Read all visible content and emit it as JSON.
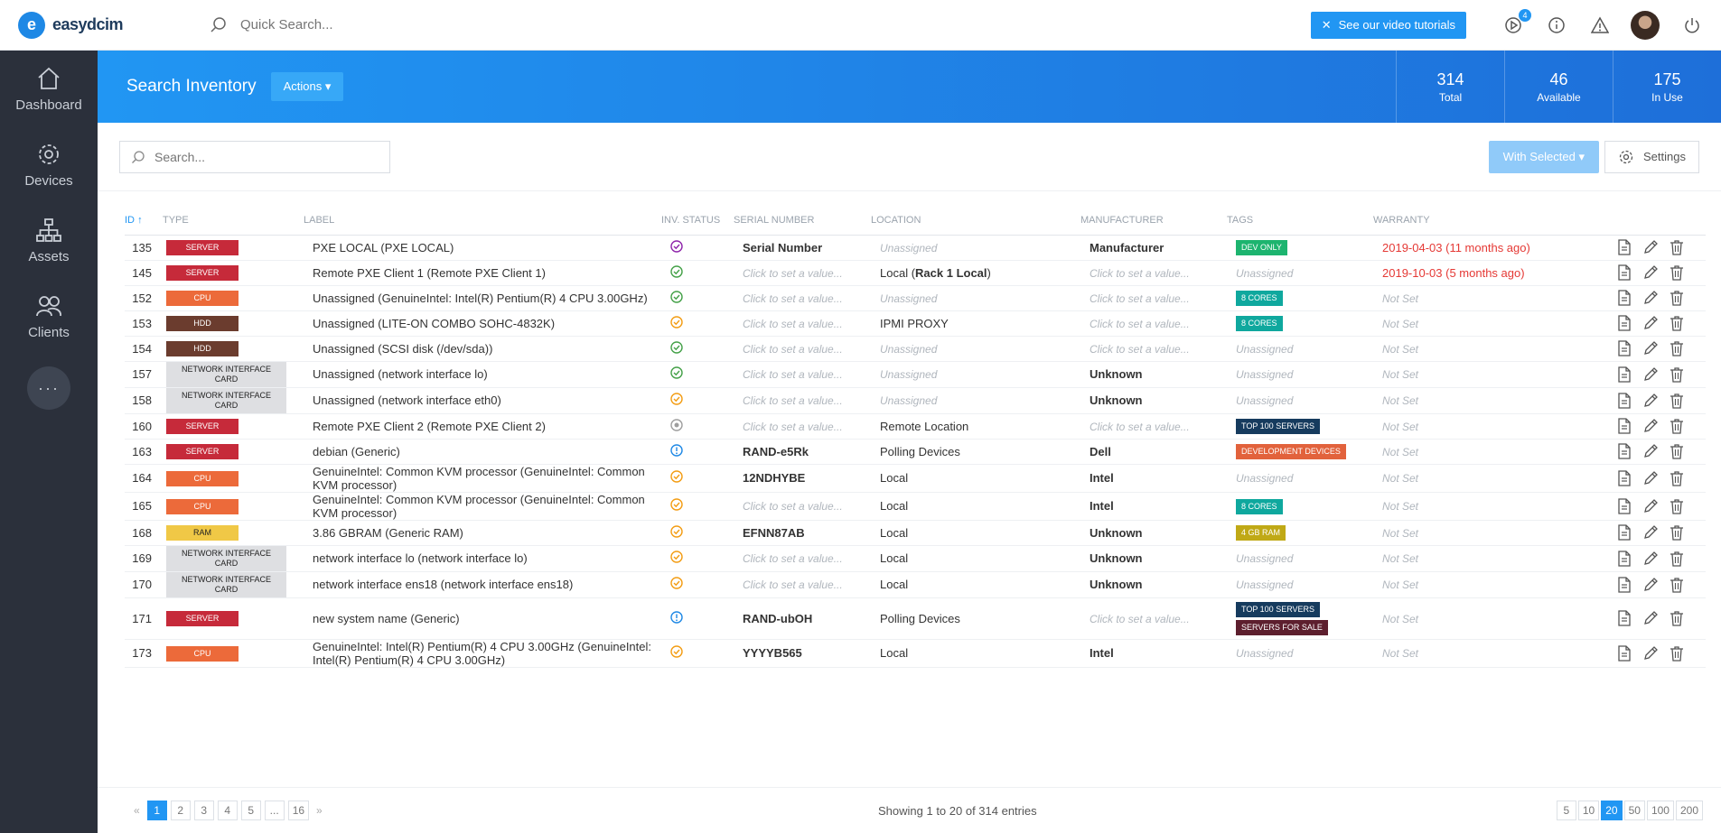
{
  "app": {
    "logo_letter": "e",
    "logo_text": "easydcim",
    "search_placeholder": "Quick Search...",
    "tutorial_label": "See our video tutorials",
    "notification_count": "4"
  },
  "sidebar": {
    "items": [
      {
        "label": "Dashboard"
      },
      {
        "label": "Devices"
      },
      {
        "label": "Assets"
      },
      {
        "label": "Clients"
      }
    ],
    "more": "···"
  },
  "header": {
    "title": "Search Inventory",
    "actions_label": "Actions",
    "stats": [
      {
        "num": "314",
        "cap": "Total"
      },
      {
        "num": "46",
        "cap": "Available"
      },
      {
        "num": "175",
        "cap": "In Use"
      }
    ]
  },
  "toolbar": {
    "search_placeholder": "Search...",
    "with_selected": "With Selected",
    "settings": "Settings"
  },
  "table": {
    "headers": {
      "id": "ID",
      "type": "TYPE",
      "label": "LABEL",
      "status": "INV. STATUS",
      "serial": "SERIAL NUMBER",
      "location": "LOCATION",
      "manufacturer": "MANUFACTURER",
      "tags": "TAGS",
      "warranty": "WARRANTY"
    },
    "rows": [
      {
        "id": "135",
        "type": "SERVER",
        "label": "PXE LOCAL (PXE LOCAL)",
        "status": "purple",
        "serial": "Serial Number",
        "serial_set": true,
        "location": "Unassigned",
        "location_set": false,
        "manufacturer": "Manufacturer",
        "man_set": true,
        "tags": [
          {
            "t": "DEV ONLY",
            "c": "#1db46f"
          }
        ],
        "warranty": "2019-04-03",
        "warranty_rel": "(11 months ago)",
        "warranty_kind": "red"
      },
      {
        "id": "145",
        "type": "SERVER",
        "label": "Remote PXE Client 1 (Remote PXE Client 1)",
        "status": "green",
        "serial": "Click to set a value...",
        "serial_set": false,
        "location": "Local (Rack 1 Local)",
        "location_set": true,
        "manufacturer": "Click to set a value...",
        "man_set": false,
        "tags": [],
        "tags_empty": "Unassigned",
        "warranty": "2019-10-03",
        "warranty_rel": "(5 months ago)",
        "warranty_kind": "red"
      },
      {
        "id": "152",
        "type": "CPU",
        "label": "Unassigned (GenuineIntel: Intel(R) Pentium(R) 4 CPU 3.00GHz)",
        "status": "green",
        "serial": "Click to set a value...",
        "serial_set": false,
        "location": "Unassigned",
        "location_set": false,
        "manufacturer": "Click to set a value...",
        "man_set": false,
        "tags": [
          {
            "t": "8 CORES",
            "c": "#0fa89e"
          }
        ],
        "warranty": "Not Set",
        "warranty_kind": "muted"
      },
      {
        "id": "153",
        "type": "HDD",
        "label": "Unassigned (LITE-ON COMBO SOHC-4832K)",
        "status": "orange",
        "serial": "Click to set a value...",
        "serial_set": false,
        "location": "IPMI PROXY",
        "location_set": true,
        "manufacturer": "Click to set a value...",
        "man_set": false,
        "tags": [
          {
            "t": "8 CORES",
            "c": "#0fa89e"
          }
        ],
        "warranty": "Not Set",
        "warranty_kind": "muted"
      },
      {
        "id": "154",
        "type": "HDD",
        "label": "Unassigned (SCSI disk (/dev/sda))",
        "status": "green",
        "serial": "Click to set a value...",
        "serial_set": false,
        "location": "Unassigned",
        "location_set": false,
        "manufacturer": "Click to set a value...",
        "man_set": false,
        "tags": [],
        "tags_empty": "Unassigned",
        "warranty": "Not Set",
        "warranty_kind": "muted"
      },
      {
        "id": "157",
        "type": "NETWORK INTERFACE CARD",
        "label": "Unassigned (network interface lo)",
        "status": "green",
        "serial": "Click to set a value...",
        "serial_set": false,
        "location": "Unassigned",
        "location_set": false,
        "manufacturer": "Unknown",
        "man_set": true,
        "tags": [],
        "tags_empty": "Unassigned",
        "warranty": "Not Set",
        "warranty_kind": "muted"
      },
      {
        "id": "158",
        "type": "NETWORK INTERFACE CARD",
        "label": "Unassigned (network interface eth0)",
        "status": "orange",
        "serial": "Click to set a value...",
        "serial_set": false,
        "location": "Unassigned",
        "location_set": false,
        "manufacturer": "Unknown",
        "man_set": true,
        "tags": [],
        "tags_empty": "Unassigned",
        "warranty": "Not Set",
        "warranty_kind": "muted"
      },
      {
        "id": "160",
        "type": "SERVER",
        "label": "Remote PXE Client 2 (Remote PXE Client 2)",
        "status": "grey",
        "serial": "Click to set a value...",
        "serial_set": false,
        "location": "Remote Location",
        "location_set": true,
        "manufacturer": "Click to set a value...",
        "man_set": false,
        "tags": [
          {
            "t": "TOP 100 SERVERS",
            "c": "#163b5e"
          }
        ],
        "warranty": "Not Set",
        "warranty_kind": "muted"
      },
      {
        "id": "163",
        "type": "SERVER",
        "label": "debian (Generic)",
        "status": "blue",
        "serial": "RAND-e5Rk",
        "serial_set": true,
        "location": "Polling Devices",
        "location_set": true,
        "manufacturer": "Dell",
        "man_set": true,
        "tags": [
          {
            "t": "DEVELOPMENT DEVICES",
            "c": "#e2623c"
          }
        ],
        "warranty": "Not Set",
        "warranty_kind": "muted"
      },
      {
        "id": "164",
        "type": "CPU",
        "label": "GenuineIntel: Common KVM processor (GenuineIntel: Common KVM processor)",
        "status": "orange",
        "serial": "12NDHYBE",
        "serial_set": true,
        "location": "Local",
        "location_set": true,
        "manufacturer": "Intel",
        "man_set": true,
        "tags": [],
        "tags_empty": "Unassigned",
        "warranty": "Not Set",
        "warranty_kind": "muted"
      },
      {
        "id": "165",
        "type": "CPU",
        "label": "GenuineIntel: Common KVM processor (GenuineIntel: Common KVM processor)",
        "status": "orange",
        "serial": "Click to set a value...",
        "serial_set": false,
        "location": "Local",
        "location_set": true,
        "manufacturer": "Intel",
        "man_set": true,
        "tags": [
          {
            "t": "8 CORES",
            "c": "#0fa89e"
          }
        ],
        "warranty": "Not Set",
        "warranty_kind": "muted"
      },
      {
        "id": "168",
        "type": "RAM",
        "label": "3.86 GBRAM (Generic RAM)",
        "status": "orange",
        "serial": "EFNN87AB",
        "serial_set": true,
        "location": "Local",
        "location_set": true,
        "manufacturer": "Unknown",
        "man_set": true,
        "tags": [
          {
            "t": "4 GB RAM",
            "c": "#c0a916"
          }
        ],
        "warranty": "Not Set",
        "warranty_kind": "muted"
      },
      {
        "id": "169",
        "type": "NETWORK INTERFACE CARD",
        "label": "network interface lo (network interface lo)",
        "status": "orange",
        "serial": "Click to set a value...",
        "serial_set": false,
        "location": "Local",
        "location_set": true,
        "manufacturer": "Unknown",
        "man_set": true,
        "tags": [],
        "tags_empty": "Unassigned",
        "warranty": "Not Set",
        "warranty_kind": "muted"
      },
      {
        "id": "170",
        "type": "NETWORK INTERFACE CARD",
        "label": "network interface ens18 (network interface ens18)",
        "status": "orange",
        "serial": "Click to set a value...",
        "serial_set": false,
        "location": "Local",
        "location_set": true,
        "manufacturer": "Unknown",
        "man_set": true,
        "tags": [],
        "tags_empty": "Unassigned",
        "warranty": "Not Set",
        "warranty_kind": "muted"
      },
      {
        "id": "171",
        "type": "SERVER",
        "label": "new system name (Generic)",
        "status": "blue",
        "serial": "RAND-ubOH",
        "serial_set": true,
        "location": "Polling Devices",
        "location_set": true,
        "manufacturer": "Click to set a value...",
        "man_set": false,
        "tags": [
          {
            "t": "TOP 100 SERVERS",
            "c": "#163b5e"
          },
          {
            "t": "SERVERS FOR SALE",
            "c": "#5d1f2e"
          }
        ],
        "warranty": "Not Set",
        "warranty_kind": "muted"
      },
      {
        "id": "173",
        "type": "CPU",
        "label": "GenuineIntel: Intel(R) Pentium(R) 4 CPU 3.00GHz (GenuineIntel: Intel(R) Pentium(R) 4 CPU 3.00GHz)",
        "status": "orange",
        "serial": "YYYYB565",
        "serial_set": true,
        "location": "Local",
        "location_set": true,
        "manufacturer": "Intel",
        "man_set": true,
        "tags": [],
        "tags_empty": "Unassigned",
        "warranty": "Not Set",
        "warranty_kind": "muted"
      }
    ]
  },
  "type_colors": {
    "SERVER": "#c62a3a",
    "CPU": "#ec6a3a",
    "HDD": "#6b3c2e",
    "NETWORK INTERFACE CARD": "#dedfe2",
    "RAM": "#f0c846"
  },
  "status_colors": {
    "purple": "#8e24aa",
    "green": "#43a047",
    "orange": "#f39c12",
    "grey": "#9e9e9e",
    "blue": "#1e88e5"
  },
  "pagination": {
    "pages": [
      "1",
      "2",
      "3",
      "4",
      "5",
      "...",
      "16"
    ],
    "active": "1",
    "showing": "Showing 1 to 20 of 314 entries",
    "per_page": [
      "5",
      "10",
      "20",
      "50",
      "100",
      "200"
    ],
    "per_page_active": "20"
  }
}
